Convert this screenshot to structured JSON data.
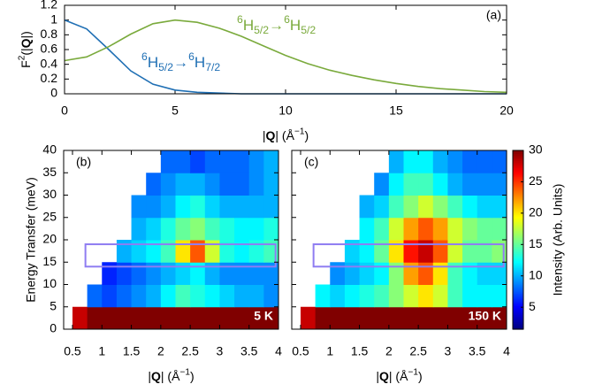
{
  "chart_data": [
    {
      "type": "line",
      "panel_label": "(a)",
      "xlabel_parts": [
        "|",
        "Q",
        "| (Å",
        "−1",
        ")"
      ],
      "ylabel_parts": [
        "F",
        "2",
        "(|",
        "Q",
        "|)"
      ],
      "x": [
        0,
        1,
        2,
        3,
        4,
        5,
        6,
        7,
        8,
        9,
        10,
        11,
        12,
        13,
        14,
        15,
        16,
        17,
        18,
        19,
        20
      ],
      "series": [
        {
          "label_parts": [
            "6",
            "H",
            "5/2",
            "→",
            "6",
            "H",
            "7/2"
          ],
          "color": "#1f6fb4",
          "values": [
            1,
            0.88,
            0.6,
            0.31,
            0.13,
            0.05,
            0.02,
            0.01,
            0,
            0,
            0,
            0,
            0,
            0,
            0,
            0,
            0,
            0,
            0,
            0,
            0
          ]
        },
        {
          "label_parts": [
            "6",
            "H",
            "5/2",
            "→",
            "6",
            "H",
            "5/2"
          ],
          "color": "#7aaa3c",
          "values": [
            0.45,
            0.5,
            0.64,
            0.81,
            0.95,
            1,
            0.97,
            0.89,
            0.78,
            0.65,
            0.52,
            0.41,
            0.32,
            0.25,
            0.19,
            0.14,
            0.1,
            0.07,
            0.05,
            0.03,
            0.02
          ]
        }
      ],
      "xlim": [
        0,
        20
      ],
      "xticks": [
        0,
        5,
        10,
        15,
        20
      ],
      "ylim": [
        0,
        1.2
      ],
      "yticks": [
        0,
        0.2,
        0.4,
        0.6,
        0.8,
        1,
        1.2
      ]
    },
    {
      "type": "heatmap",
      "panel_label": "(b)",
      "annotation": "5 K",
      "xlabel_parts": [
        "|",
        "Q",
        "| (Å",
        "−1",
        ")"
      ],
      "ylabel": "Energy Transfer (meV)",
      "x_edges": [
        0.5,
        0.75,
        1,
        1.25,
        1.5,
        1.75,
        2,
        2.25,
        2.5,
        2.75,
        3,
        3.25,
        3.5,
        3.75,
        4
      ],
      "y_edges": [
        0,
        5,
        10,
        15,
        20,
        25,
        30,
        35,
        40
      ],
      "z": [
        [
          28,
          30,
          30,
          30,
          30,
          30,
          30,
          30,
          30,
          30,
          30,
          30,
          30,
          30
        ],
        [
          null,
          8,
          7,
          8,
          9,
          10,
          12,
          14,
          13,
          12,
          11,
          10,
          10,
          9
        ],
        [
          null,
          null,
          6,
          7,
          8,
          9,
          10,
          11,
          12,
          10,
          9,
          9,
          9,
          9
        ],
        [
          null,
          null,
          null,
          10,
          11,
          12,
          14,
          20,
          24,
          18,
          13,
          12,
          13,
          14
        ],
        [
          null,
          null,
          null,
          null,
          10,
          11,
          13,
          15,
          16,
          14,
          13,
          12,
          12,
          13
        ],
        [
          null,
          null,
          null,
          null,
          9,
          9,
          10,
          12,
          13,
          11,
          10,
          10,
          10,
          10
        ],
        [
          null,
          null,
          null,
          null,
          null,
          8,
          9,
          10,
          10,
          9,
          8,
          8,
          9,
          10
        ],
        [
          null,
          null,
          null,
          null,
          null,
          null,
          8,
          8,
          7,
          8,
          8,
          8,
          9,
          10
        ]
      ],
      "xlim": [
        0.35,
        4
      ],
      "xticks": [
        0.5,
        1,
        1.5,
        2,
        2.5,
        3,
        3.5,
        4
      ],
      "ylim": [
        0,
        40
      ],
      "yticks": [
        0,
        5,
        10,
        15,
        20,
        25,
        30,
        35,
        40
      ],
      "box": {
        "x": [
          0.72,
          3.95
        ],
        "y": [
          14,
          19
        ],
        "color": "#8f7df2"
      }
    },
    {
      "type": "heatmap",
      "panel_label": "(c)",
      "annotation": "150 K",
      "xlabel_parts": [
        "|",
        "Q",
        "| (Å",
        "−1",
        ")"
      ],
      "x_edges": [
        0.5,
        0.75,
        1,
        1.25,
        1.5,
        1.75,
        2,
        2.25,
        2.5,
        2.75,
        3,
        3.25,
        3.5,
        3.75,
        4
      ],
      "y_edges": [
        0,
        5,
        10,
        15,
        20,
        25,
        30,
        35,
        40
      ],
      "z": [
        [
          28,
          30,
          30,
          30,
          30,
          30,
          30,
          30,
          30,
          30,
          30,
          30,
          30,
          30
        ],
        [
          null,
          12,
          11,
          12,
          13,
          14,
          16,
          18,
          20,
          18,
          14,
          12,
          12,
          12
        ],
        [
          null,
          null,
          9,
          10,
          11,
          12,
          16,
          22,
          24,
          20,
          14,
          12,
          11,
          11
        ],
        [
          null,
          null,
          null,
          11,
          12,
          15,
          20,
          26,
          28,
          24,
          18,
          15,
          15,
          16
        ],
        [
          null,
          null,
          null,
          null,
          12,
          14,
          18,
          22,
          24,
          22,
          18,
          16,
          15,
          15
        ],
        [
          null,
          null,
          null,
          null,
          10,
          11,
          14,
          16,
          18,
          16,
          14,
          12,
          11,
          11
        ],
        [
          null,
          null,
          null,
          null,
          null,
          9,
          12,
          14,
          14,
          12,
          10,
          9,
          9,
          9
        ],
        [
          null,
          null,
          null,
          null,
          null,
          null,
          10,
          12,
          12,
          10,
          9,
          8,
          8,
          8
        ]
      ],
      "xlim": [
        0.35,
        4
      ],
      "xticks": [
        0.5,
        1,
        1.5,
        2,
        2.5,
        3,
        3.5,
        4
      ],
      "ylim": [
        0,
        40
      ],
      "yticks": [
        0,
        5,
        10,
        15,
        20,
        25,
        30,
        35,
        40
      ],
      "box": {
        "x": [
          0.72,
          3.95
        ],
        "y": [
          14,
          19
        ],
        "color": "#8f7df2"
      },
      "clim": [
        1.5,
        30
      ],
      "cticks": [
        5,
        10,
        15,
        20,
        25,
        30
      ],
      "clabel": "Intensity (Arb. Units)"
    }
  ]
}
